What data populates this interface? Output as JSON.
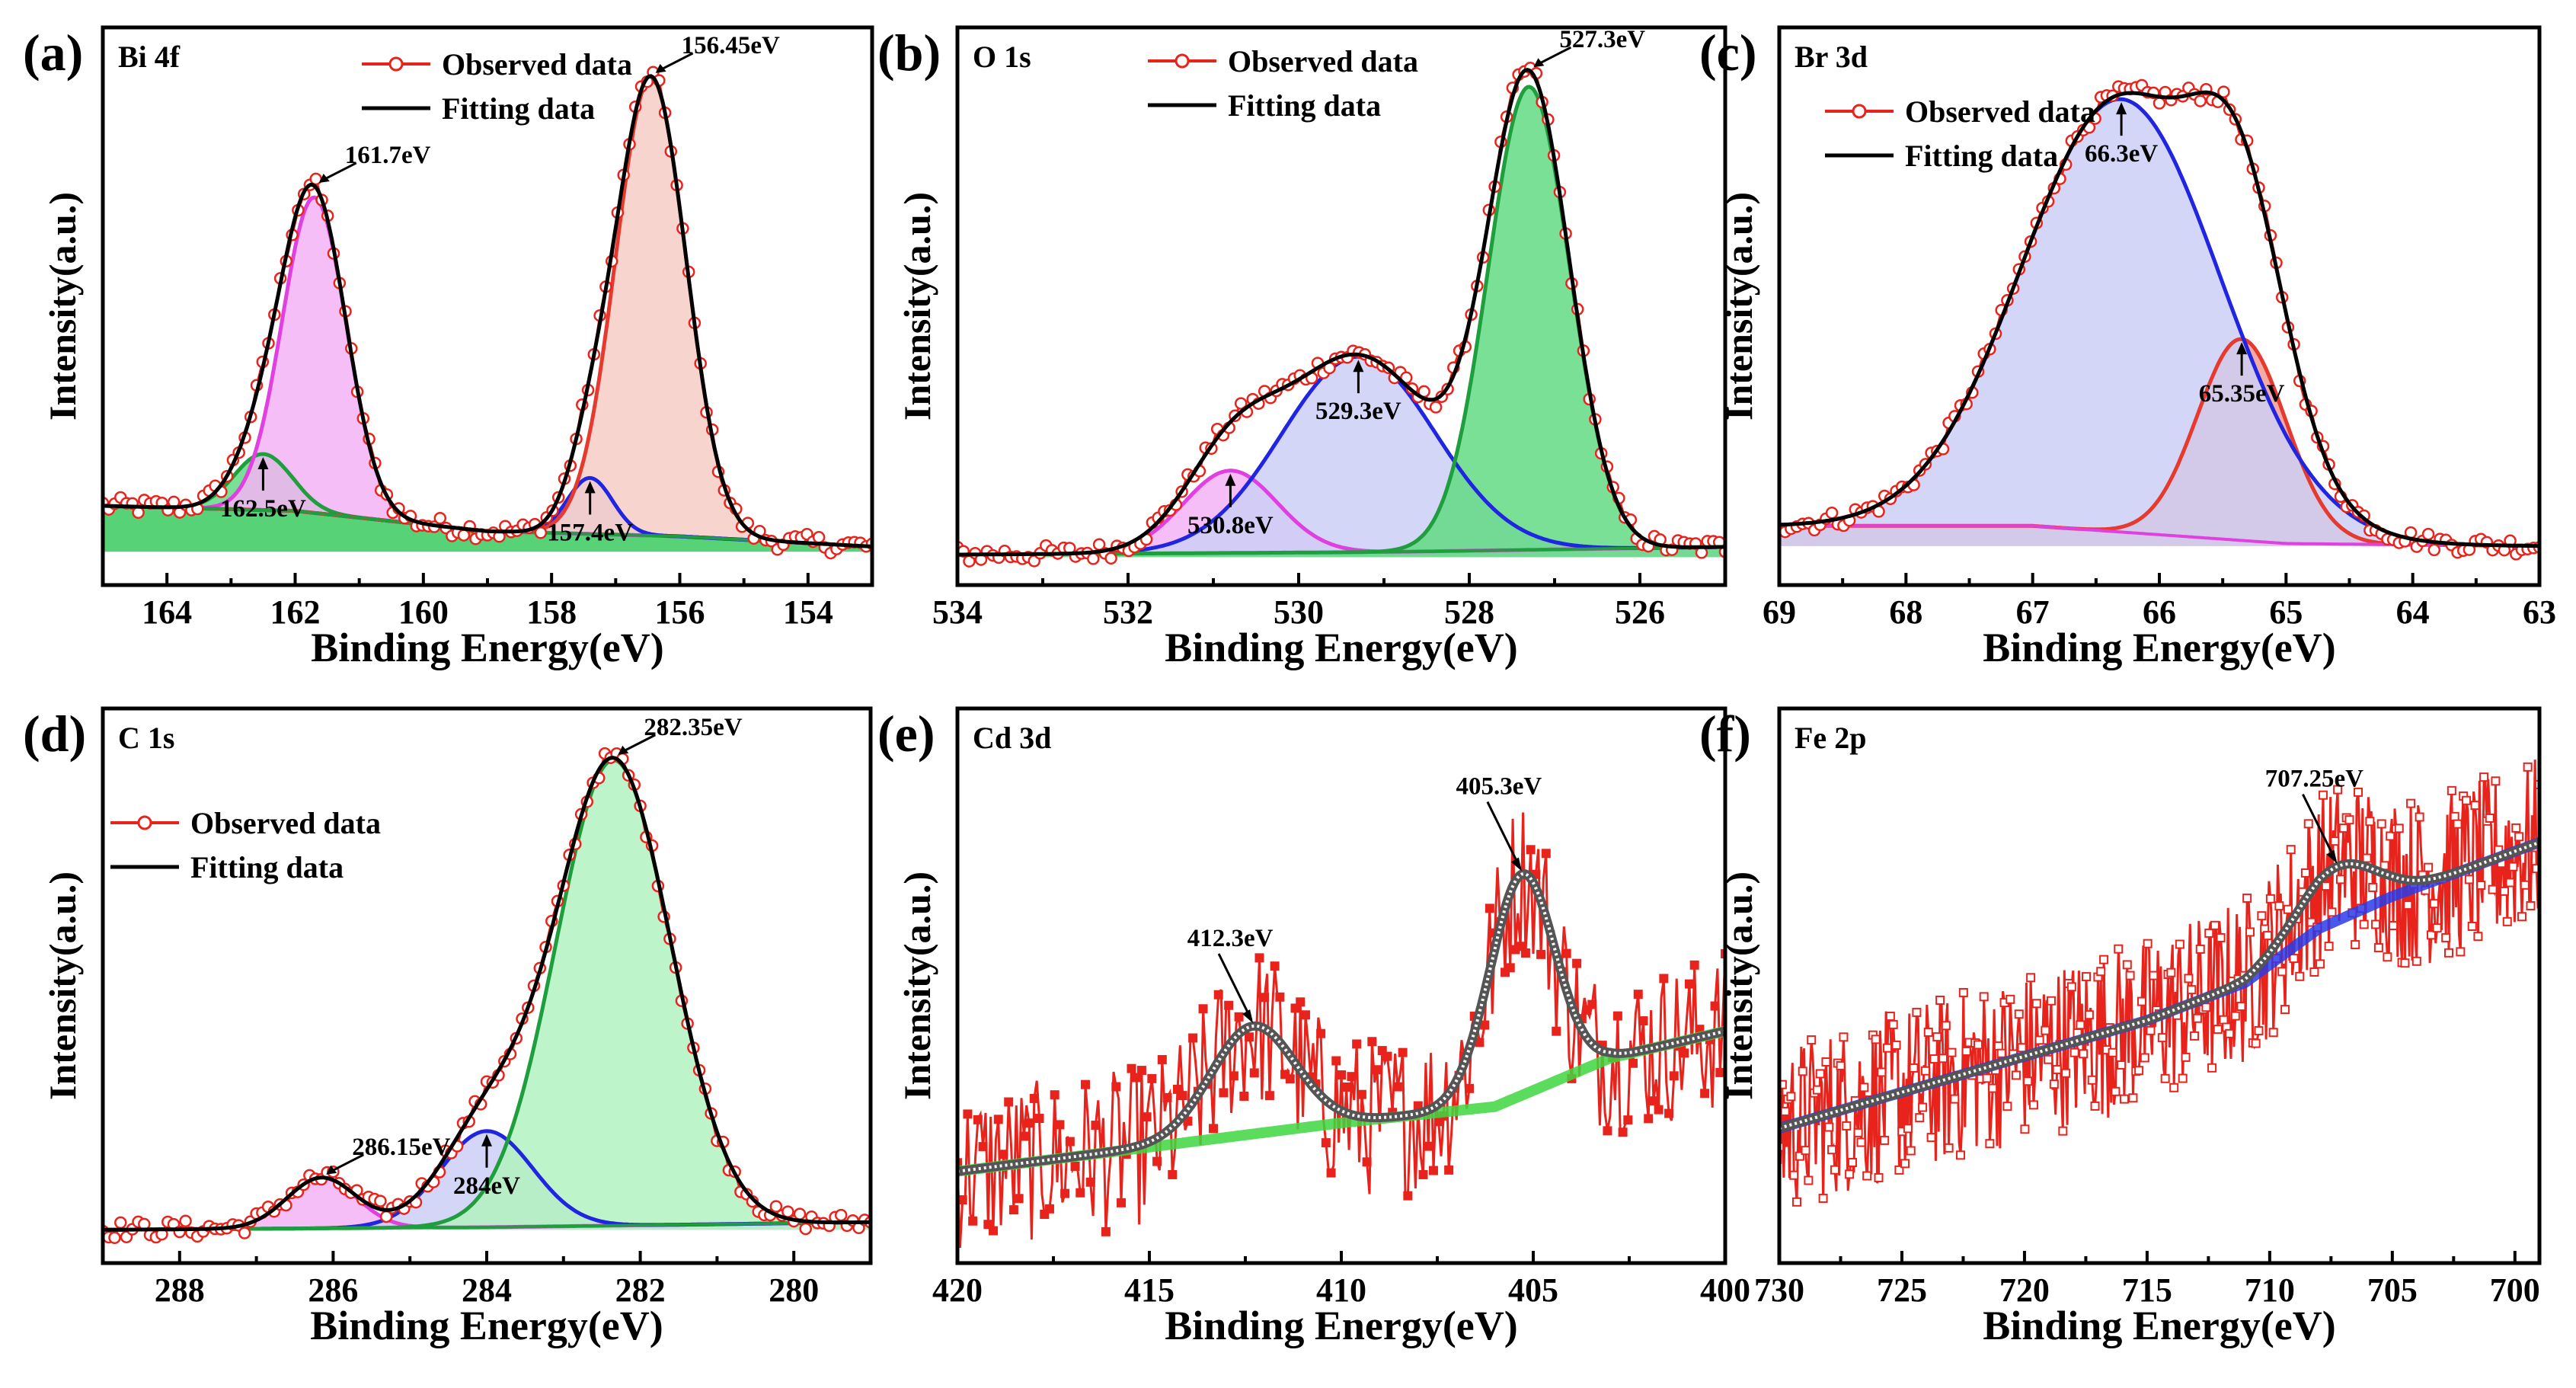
{
  "chart_data": [
    {
      "id": "a",
      "type": "line",
      "panel_label": "(a)",
      "element": "Bi 4f",
      "xlabel": "Binding Energy(eV)",
      "ylabel": "Intensity(a.u.)",
      "xlim": [
        165,
        153
      ],
      "xticks": [
        164,
        162,
        160,
        158,
        156,
        154
      ],
      "ylim": [
        0,
        1.0
      ],
      "legend": [
        "Observed data",
        "Fitting data"
      ],
      "baseline": [
        [
          165,
          0.09
        ],
        [
          162,
          0.08
        ],
        [
          159,
          0.04
        ],
        [
          156,
          0.03
        ],
        [
          153,
          0.01
        ]
      ],
      "peaks": [
        {
          "center": 162.5,
          "height": 0.11,
          "sigma": 0.45,
          "fill": "#46d36e",
          "line": "#1e9e3c",
          "label": "162.5eV",
          "label_pos": "below"
        },
        {
          "center": 161.7,
          "height": 0.62,
          "sigma": 0.5,
          "fill": "#f2a6f2",
          "line": "#e040e0",
          "label": "161.7eV",
          "label_pos": "above"
        },
        {
          "center": 157.4,
          "height": 0.11,
          "sigma": 0.35,
          "fill": "#aab0f2",
          "line": "#1f25e0",
          "label": "157.4eV",
          "label_pos": "below"
        },
        {
          "center": 156.45,
          "height": 0.9,
          "sigma": 0.55,
          "fill": "#f6c3bd",
          "line": "#e63a2e",
          "label": "156.45eV",
          "label_pos": "above"
        }
      ]
    },
    {
      "id": "b",
      "type": "line",
      "panel_label": "(b)",
      "element": "O 1s",
      "xlabel": "Binding Energy(eV)",
      "ylabel": "Intensity(a.u.)",
      "xlim": [
        534,
        525
      ],
      "xticks": [
        534,
        532,
        530,
        528,
        526
      ],
      "ylim": [
        0,
        1.0
      ],
      "legend": [
        "Observed data",
        "Fitting data"
      ],
      "baseline": [
        [
          534,
          0.005
        ],
        [
          529,
          0.01
        ],
        [
          525,
          0.02
        ]
      ],
      "peaks": [
        {
          "center": 530.8,
          "height": 0.16,
          "sigma": 0.55,
          "fill": "#f2a6f2",
          "line": "#e040e0",
          "label": "530.8eV",
          "label_pos": "below"
        },
        {
          "center": 529.3,
          "height": 0.38,
          "sigma": 0.9,
          "fill": "#c3c6f5",
          "line": "#1f25e0",
          "label": "529.3eV",
          "label_pos": "below"
        },
        {
          "center": 527.3,
          "height": 0.9,
          "sigma": 0.48,
          "fill": "#46d36e",
          "line": "#1e9e3c",
          "label": "527.3eV",
          "label_pos": "above"
        }
      ]
    },
    {
      "id": "c",
      "type": "line",
      "panel_label": "(c)",
      "element": "Br 3d",
      "xlabel": "Binding Energy(eV)",
      "ylabel": "Intensity(a.u.)",
      "xlim": [
        69,
        63
      ],
      "xticks": [
        69,
        68,
        67,
        66,
        65,
        64,
        63
      ],
      "ylim": [
        0,
        1.0
      ],
      "legend": [
        "Observed data",
        "Fitting data"
      ],
      "baseline": [
        [
          69,
          0.04
        ],
        [
          67,
          0.04
        ],
        [
          65,
          0.005
        ],
        [
          63,
          0.0
        ]
      ],
      "peaks": [
        {
          "center": 65.35,
          "height": 0.4,
          "sigma": 0.35,
          "fill": "#f08a80",
          "line": "#e63a2e",
          "label": "65.35eV",
          "label_pos": "below"
        },
        {
          "center": 66.3,
          "height": 0.86,
          "sigma": 0.78,
          "fill": "#c3c6f5",
          "line": "#1f25e0",
          "label": "66.3eV",
          "label_pos": "below"
        }
      ]
    },
    {
      "id": "d",
      "type": "line",
      "panel_label": "(d)",
      "element": "C 1s",
      "xlabel": "Binding Energy(eV)",
      "ylabel": "Intensity(a.u.)",
      "xlim": [
        289,
        279
      ],
      "xticks": [
        288,
        286,
        284,
        282,
        280
      ],
      "ylim": [
        0,
        1.0
      ],
      "legend": [
        "Observed data",
        "Fitting data"
      ],
      "baseline": [
        [
          289,
          0.0
        ],
        [
          284,
          0.005
        ],
        [
          279,
          0.015
        ]
      ],
      "peaks": [
        {
          "center": 286.15,
          "height": 0.1,
          "sigma": 0.45,
          "fill": "#f2a6f2",
          "line": "#e040e0",
          "label": "286.15eV",
          "label_pos": "above"
        },
        {
          "center": 284.0,
          "height": 0.19,
          "sigma": 0.6,
          "fill": "#c3c6f5",
          "line": "#1f25e0",
          "label": "284eV",
          "label_pos": "below"
        },
        {
          "center": 282.35,
          "height": 0.92,
          "sigma": 0.75,
          "fill": "#a4f0b4",
          "line": "#1e9e3c",
          "label": "282.35eV",
          "label_pos": "above"
        }
      ]
    },
    {
      "id": "e",
      "type": "line",
      "panel_label": "(e)",
      "element": "Cd 3d",
      "xlabel": "Binding Energy(eV)",
      "ylabel": "Intensity(a.u.)",
      "xlim": [
        420,
        400
      ],
      "xticks": [
        420,
        415,
        410,
        405,
        400
      ],
      "ylim": [
        0,
        1.0
      ],
      "background": [
        [
          420,
          0.17
        ],
        [
          410,
          0.26
        ],
        [
          406,
          0.29
        ],
        [
          403,
          0.38
        ],
        [
          400,
          0.43
        ]
      ],
      "peaks": [
        {
          "center": 412.3,
          "height": 0.2,
          "sigma": 1.1,
          "label": "412.3eV"
        },
        {
          "center": 405.3,
          "height": 0.41,
          "sigma": 0.85,
          "label": "405.3eV"
        }
      ]
    },
    {
      "id": "f",
      "type": "line",
      "panel_label": "(f)",
      "element": "Fe 2p",
      "xlabel": "Binding Energy(eV)",
      "ylabel": "Intensity(a.u.)",
      "xlim": [
        730,
        699
      ],
      "xticks": [
        730,
        725,
        720,
        715,
        710,
        705,
        700
      ],
      "ylim": [
        0,
        1.0
      ],
      "background": [
        [
          730,
          0.25
        ],
        [
          715,
          0.45
        ],
        [
          711,
          0.52
        ],
        [
          708,
          0.62
        ],
        [
          705,
          0.68
        ],
        [
          699,
          0.78
        ]
      ],
      "peaks": [
        {
          "center": 707.25,
          "height": 0.1,
          "sigma": 1.6,
          "label": "707.25eV"
        }
      ]
    }
  ]
}
